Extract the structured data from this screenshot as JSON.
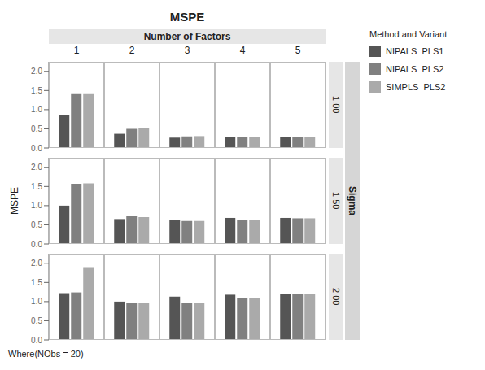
{
  "chart_data": {
    "type": "bar",
    "title": "MSPE",
    "ylabel": "MSPE",
    "xlabel": "Number of Factors",
    "facet_label": "Sigma",
    "legend_title": "Method and Variant",
    "footnote": "Where(NObs = 20)",
    "legend": "right",
    "categories": [
      "1",
      "2",
      "3",
      "4",
      "5"
    ],
    "facets": [
      "1.00",
      "1.50",
      "2.00"
    ],
    "ylim": [
      0,
      2.25
    ],
    "yticks": [
      {
        "value": 0,
        "label": "0.0"
      },
      0.5,
      {
        "value": 1,
        "label": "1.0"
      },
      1.5,
      {
        "value": 2,
        "label": "2.0"
      }
    ],
    "series": [
      {
        "name": "NIPALS  PLS1",
        "color": "#555555",
        "values": [
          [
            0.85,
            0.37,
            0.27,
            0.28,
            0.28
          ],
          [
            1.0,
            0.65,
            0.62,
            0.68,
            0.68
          ],
          [
            1.22,
            1.0,
            1.13,
            1.18,
            1.19
          ]
        ]
      },
      {
        "name": "NIPALS  PLS2",
        "color": "#808080",
        "values": [
          [
            1.43,
            0.5,
            0.3,
            0.28,
            0.29
          ],
          [
            1.57,
            0.72,
            0.6,
            0.63,
            0.67
          ],
          [
            1.24,
            0.97,
            0.97,
            1.1,
            1.2
          ]
        ]
      },
      {
        "name": "SIMPLS  PLS2",
        "color": "#aaaaaa",
        "values": [
          [
            1.43,
            0.51,
            0.31,
            0.28,
            0.29
          ],
          [
            1.58,
            0.7,
            0.6,
            0.63,
            0.67
          ],
          [
            1.9,
            0.97,
            0.97,
            1.1,
            1.2
          ]
        ]
      }
    ]
  }
}
